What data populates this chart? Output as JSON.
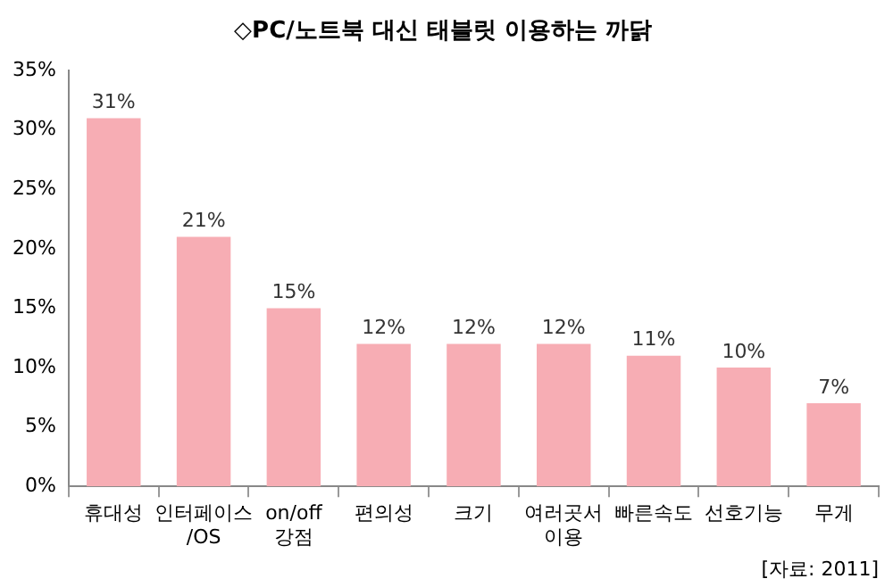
{
  "chart_data": {
    "type": "bar",
    "title": "◇PC/노트북 대신 태블릿 이용하는 까닭",
    "categories": [
      "휴대성",
      "인터페이스\n/OS",
      "on/off\n강점",
      "편의성",
      "크기",
      "여러곳서\n이용",
      "빠른속도",
      "선호기능",
      "무게"
    ],
    "values": [
      31,
      21,
      15,
      12,
      12,
      12,
      11,
      10,
      7
    ],
    "value_labels": [
      "31%",
      "21%",
      "15%",
      "12%",
      "12%",
      "12%",
      "11%",
      "10%",
      "7%"
    ],
    "color": "#f7adb4",
    "ylim": [
      0,
      35
    ],
    "yticks": [
      {
        "value": 0,
        "label": "0%"
      },
      {
        "value": 5,
        "label": "5%"
      },
      {
        "value": 10,
        "label": "10%"
      },
      {
        "value": 15,
        "label": "15%"
      },
      {
        "value": 20,
        "label": "20%"
      },
      {
        "value": 25,
        "label": "25%"
      },
      {
        "value": 30,
        "label": "30%"
      },
      {
        "value": 35,
        "label": "35%"
      }
    ],
    "grid": false,
    "legend": false,
    "annotations": [
      "[자료: 2011]"
    ]
  }
}
